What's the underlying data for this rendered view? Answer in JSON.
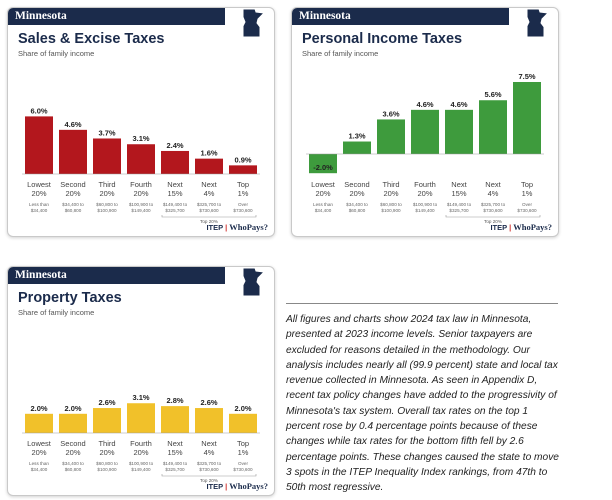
{
  "brand": {
    "itep": "ITEP",
    "whopays": "WhoPays?"
  },
  "state": "Minnesota",
  "subtitle": "Share of family income",
  "categories": [
    "Lowest 20%",
    "Second 20%",
    "Third 20%",
    "Fourth 20%",
    "Next 15%",
    "Next 4%",
    "Top 1%"
  ],
  "income_ranges": [
    "Less than $34,400",
    "$34,400 to $60,800",
    "$60,800 to $100,900",
    "$100,900 to $149,400",
    "$149,400 to $325,700",
    "$325,700 to $730,600",
    "Over $730,600"
  ],
  "top20_label": "Top 20%",
  "colors": {
    "sales": "#b3171d",
    "income": "#3e9b3d",
    "property": "#f1c12a",
    "navy": "#1b2b4b"
  },
  "chart_data": [
    {
      "type": "bar",
      "id": "sales",
      "title": "Sales & Excise Taxes",
      "subtitle": "Share of family income",
      "categories": [
        "Lowest 20%",
        "Second 20%",
        "Third 20%",
        "Fourth 20%",
        "Next 15%",
        "Next 4%",
        "Top 1%"
      ],
      "values": [
        6.0,
        4.6,
        3.7,
        3.1,
        2.4,
        1.6,
        0.9
      ],
      "labels": [
        "6.0%",
        "4.6%",
        "3.7%",
        "3.1%",
        "2.4%",
        "1.6%",
        "0.9%"
      ],
      "ylim": [
        0,
        8
      ]
    },
    {
      "type": "bar",
      "id": "income",
      "title": "Personal Income Taxes",
      "subtitle": "Share of family income",
      "categories": [
        "Lowest 20%",
        "Second 20%",
        "Third 20%",
        "Fourth 20%",
        "Next 15%",
        "Next 4%",
        "Top 1%"
      ],
      "values": [
        -2.0,
        1.3,
        3.6,
        4.6,
        4.6,
        5.6,
        7.5
      ],
      "labels": [
        "-2.0%",
        "1.3%",
        "3.6%",
        "4.6%",
        "4.6%",
        "5.6%",
        "7.5%"
      ],
      "ylim": [
        -2,
        8
      ]
    },
    {
      "type": "bar",
      "id": "property",
      "title": "Property Taxes",
      "subtitle": "Share of family income",
      "categories": [
        "Lowest 20%",
        "Second 20%",
        "Third 20%",
        "Fourth 20%",
        "Next 15%",
        "Next 4%",
        "Top 1%"
      ],
      "values": [
        2.0,
        2.0,
        2.6,
        3.1,
        2.8,
        2.6,
        2.0
      ],
      "labels": [
        "2.0%",
        "2.0%",
        "2.6%",
        "3.1%",
        "2.8%",
        "2.6%",
        "2.0%"
      ],
      "ylim": [
        0,
        8
      ]
    }
  ],
  "note": "All figures and charts show 2024 tax law in Minnesota, presented at 2023 income levels. Senior taxpayers are excluded for reasons detailed in the methodology. Our analysis includes nearly all (99.9 percent) state and local tax revenue collected in Minnesota. As seen in Appendix D, recent tax policy changes have added to the progressivity of Minnesota's tax system. Overall tax rates on the top 1 percent rose by 0.4 percentage points because of these changes while tax rates for the bottom fifth fell by 2.6 percentage points. These changes caused the state to move 3 spots in the ITEP Inequality Index rankings, from 47th to 50th most regressive."
}
